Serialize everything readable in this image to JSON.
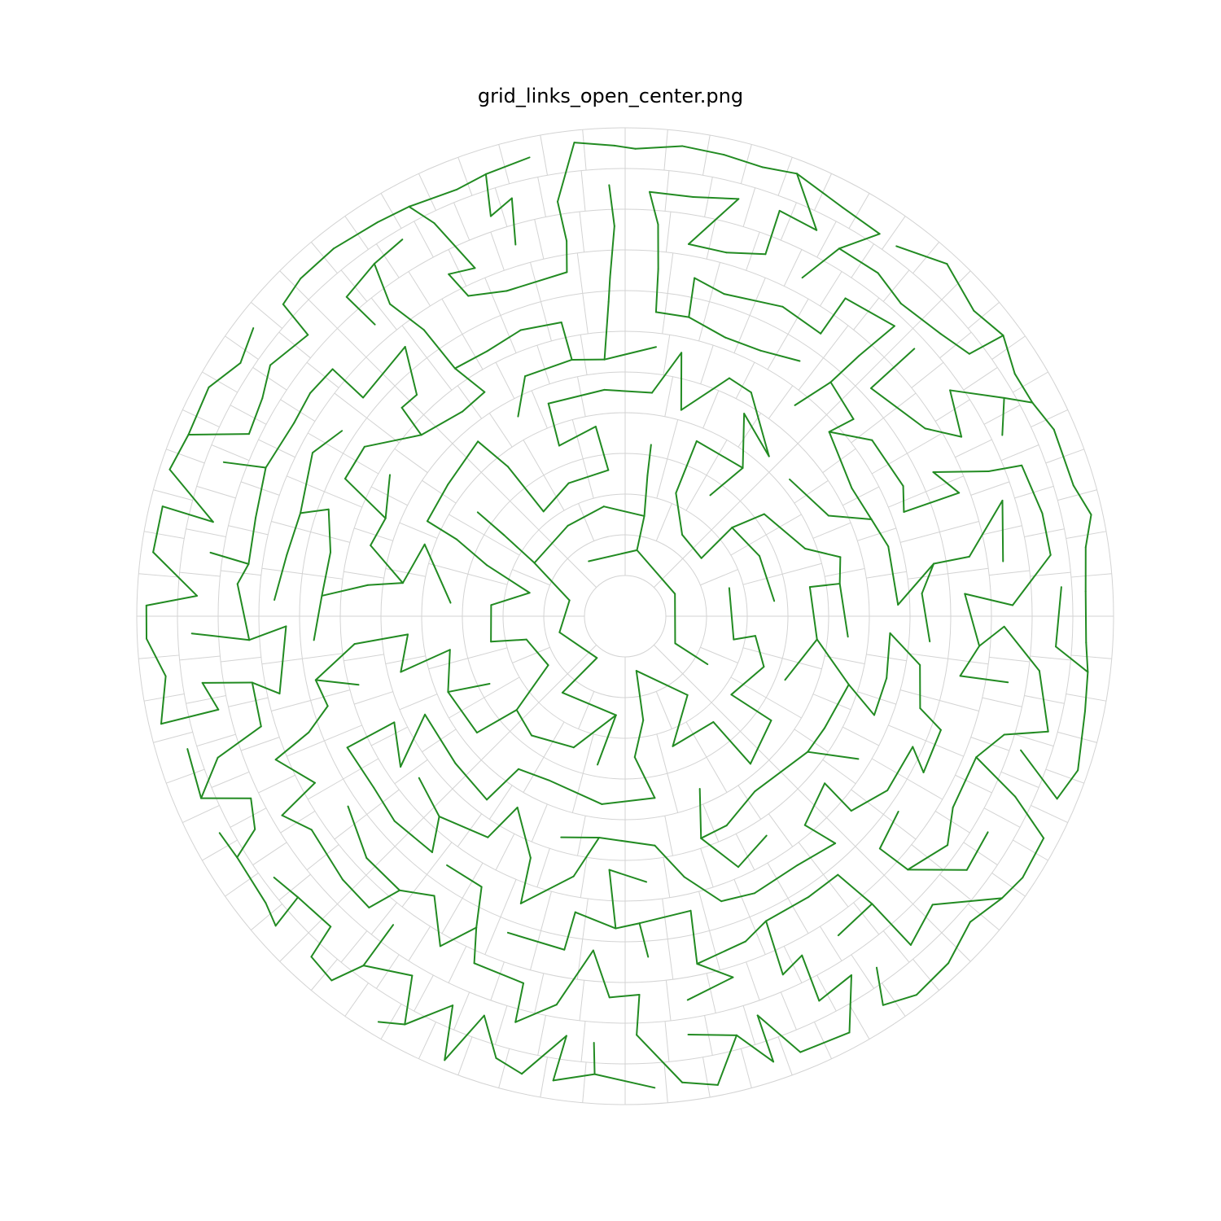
{
  "title": "grid_links_open_center.png",
  "colors": {
    "link": "#228b22",
    "grid": "#d3d3d3",
    "background": "#ffffff"
  },
  "diagram": {
    "type": "polar-grid-maze",
    "rings": 11,
    "center": "open",
    "spokes_per_ring": [
      8,
      16,
      24,
      24,
      32,
      40,
      48,
      48,
      56,
      64,
      72
    ]
  }
}
